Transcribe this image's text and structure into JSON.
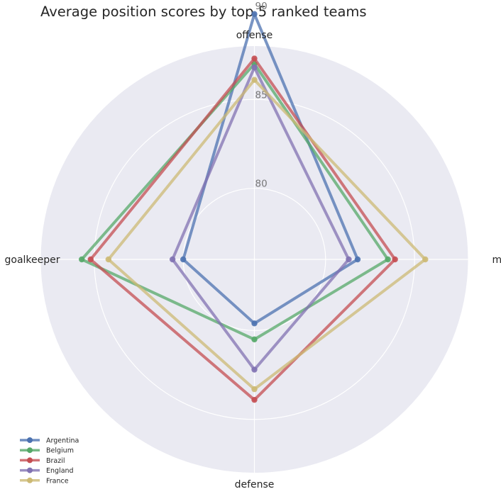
{
  "chart_data": {
    "type": "radar",
    "title": "Average position scores by top 5 ranked teams",
    "axes": [
      "offense",
      "midfield",
      "defense",
      "goalkeeper"
    ],
    "rlim": [
      76,
      88
    ],
    "tick_values": [
      80,
      85,
      90
    ],
    "tick_labels": [
      "80",
      "85",
      "90"
    ],
    "grid": true,
    "legend_position": "lower-left",
    "series": [
      {
        "name": "Argentina",
        "color": "#4c72b0",
        "values": [
          89.8,
          81.8,
          79.6,
          80.0
        ]
      },
      {
        "name": "Belgium",
        "color": "#55a868",
        "values": [
          87.0,
          83.5,
          80.5,
          85.7
        ]
      },
      {
        "name": "Brazil",
        "color": "#c44e52",
        "values": [
          87.3,
          83.9,
          83.9,
          85.2
        ]
      },
      {
        "name": "England",
        "color": "#8172b2",
        "values": [
          86.8,
          81.3,
          82.2,
          80.6
        ]
      },
      {
        "name": "France",
        "color": "#ccb974",
        "values": [
          86.1,
          85.6,
          83.3,
          84.2
        ]
      }
    ]
  }
}
